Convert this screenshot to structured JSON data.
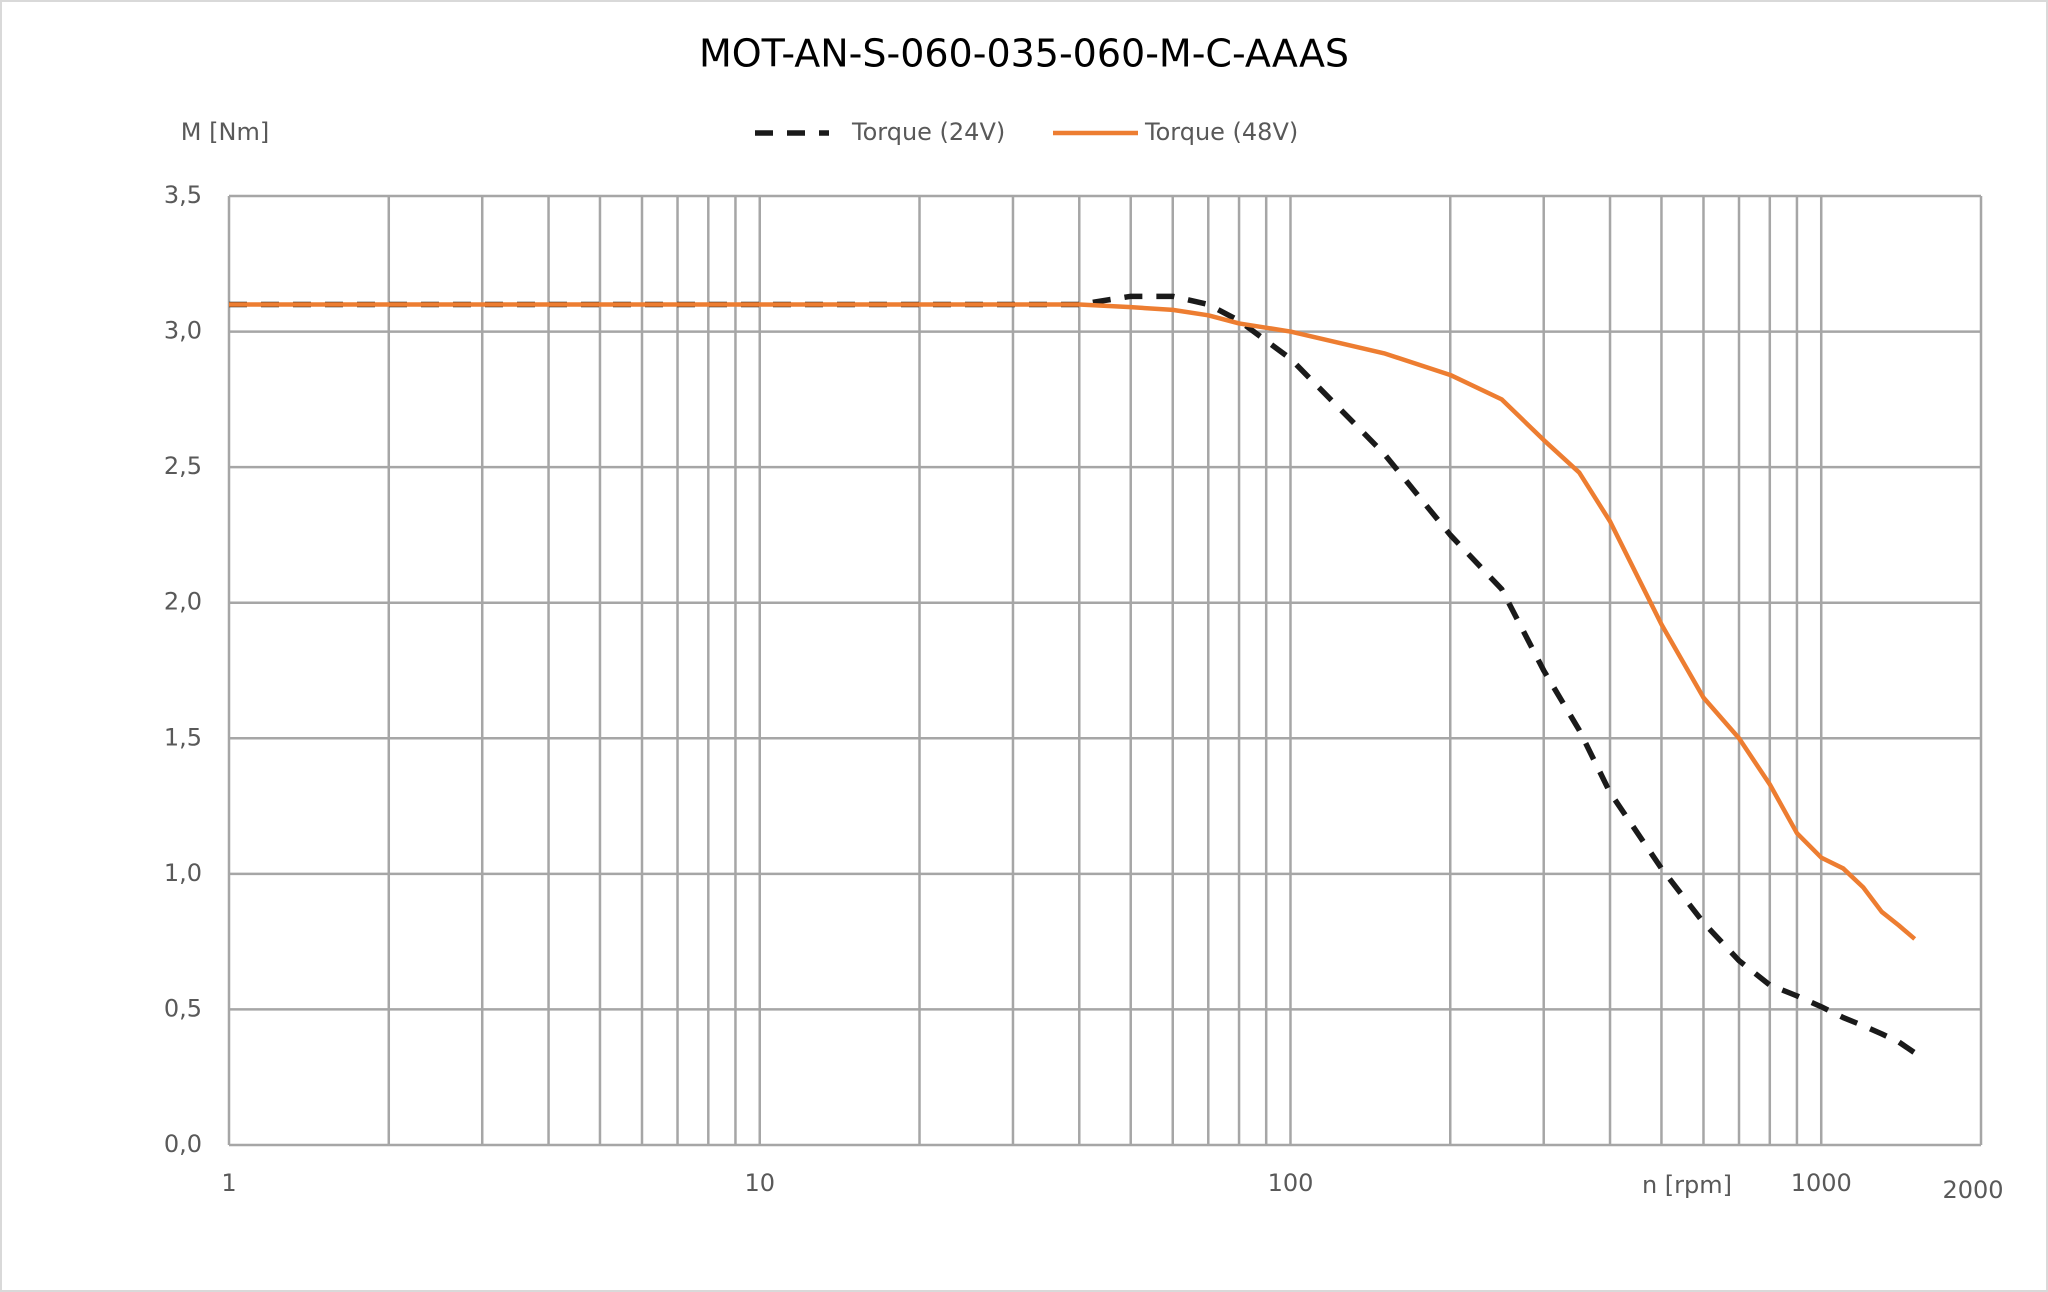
{
  "chart_data": {
    "type": "line",
    "title": "MOT-AN-S-060-035-060-M-C-AAAS",
    "y_label": "M [Nm]",
    "x_label": "n [rpm]",
    "x_scale": "log",
    "grid": true,
    "legend_position": "top",
    "x": [
      1,
      10,
      30,
      40,
      50,
      60,
      70,
      80,
      100,
      150,
      200,
      250,
      300,
      350,
      400,
      500,
      600,
      700,
      800,
      900,
      1000,
      1100,
      1200,
      1300,
      1400,
      1500
    ],
    "series": [
      {
        "name": "Torque (24V)",
        "color": "#1a1a1a",
        "dash": true,
        "values": [
          3.1,
          3.1,
          3.1,
          3.1,
          3.13,
          3.13,
          3.1,
          3.04,
          2.9,
          2.55,
          2.25,
          2.05,
          1.75,
          1.53,
          1.3,
          1.02,
          0.82,
          0.68,
          0.59,
          0.55,
          0.51,
          0.47,
          0.44,
          0.41,
          0.38,
          0.34
        ]
      },
      {
        "name": "Torque (48V)",
        "color": "#ed7d31",
        "dash": false,
        "values": [
          3.1,
          3.1,
          3.1,
          3.1,
          3.09,
          3.08,
          3.06,
          3.03,
          3.0,
          2.92,
          2.84,
          2.75,
          2.6,
          2.48,
          2.3,
          1.92,
          1.65,
          1.5,
          1.33,
          1.15,
          1.06,
          1.02,
          0.95,
          0.86,
          0.81,
          0.76
        ]
      }
    ],
    "xlim": [
      1,
      2000
    ],
    "xticks": [
      1,
      10,
      100,
      1000,
      2000
    ],
    "x_minor_grid": [
      2,
      3,
      4,
      5,
      6,
      7,
      8,
      9,
      20,
      30,
      40,
      50,
      60,
      70,
      80,
      90,
      200,
      300,
      400,
      500,
      600,
      700,
      800,
      900
    ],
    "ylim": [
      0,
      3.5
    ],
    "yticks": [
      {
        "value": 0,
        "label": "0,0"
      },
      {
        "value": 0.5,
        "label": "0,5"
      },
      {
        "value": 1,
        "label": "1,0"
      },
      {
        "value": 1.5,
        "label": "1,5"
      },
      {
        "value": 2,
        "label": "2,0"
      },
      {
        "value": 2.5,
        "label": "2,5"
      },
      {
        "value": 3,
        "label": "3,0"
      },
      {
        "value": 3.5,
        "label": "3,5"
      }
    ]
  }
}
